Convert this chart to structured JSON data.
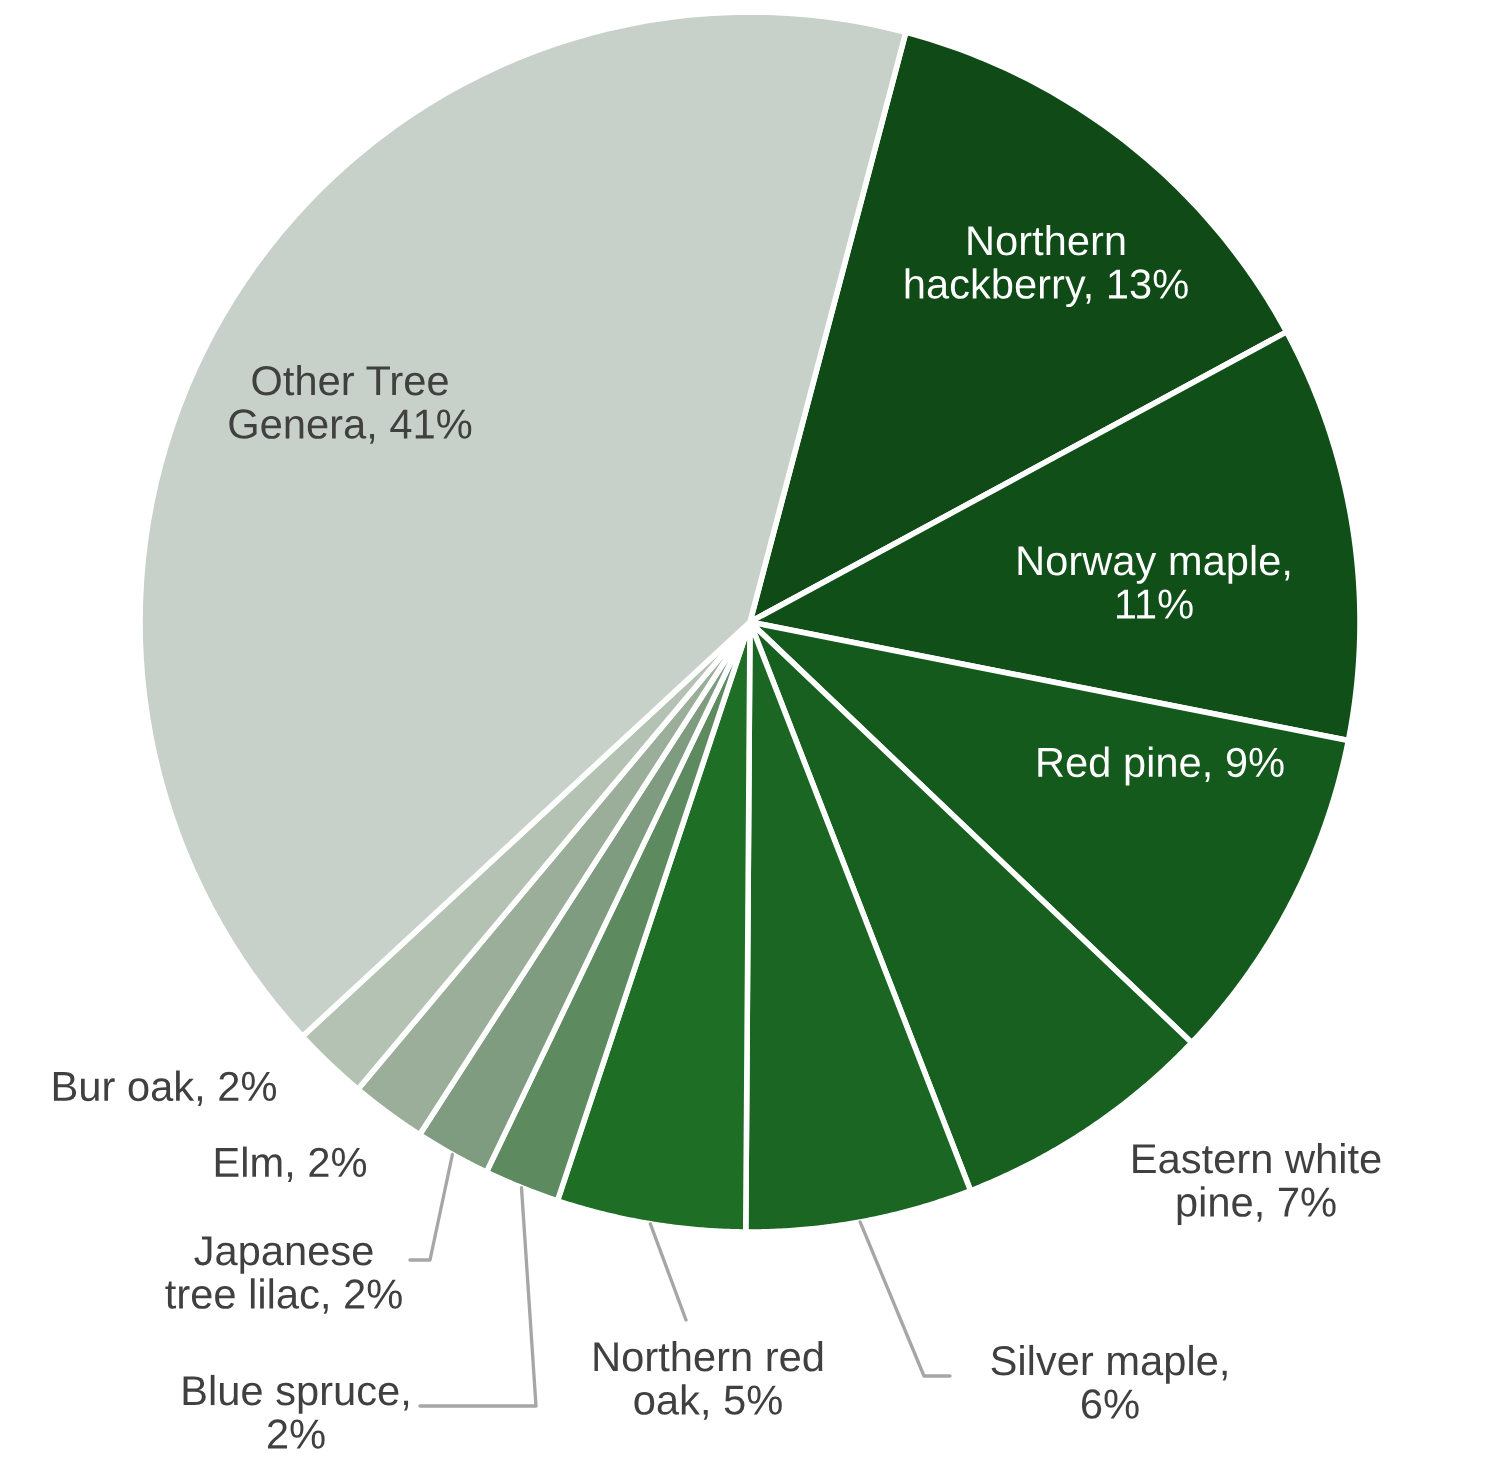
{
  "chart_data": {
    "type": "pie",
    "categories": [
      "Northern hackberry, 13%",
      "Norway maple, 11%",
      "Red pine, 9%",
      "Eastern white pine, 7%",
      "Silver maple, 6%",
      "Northern red oak, 5%",
      "Blue spruce, 2%",
      "Japanese tree lilac, 2%",
      "Elm, 2%",
      "Bur oak, 2%",
      "Other Tree Genera, 41%"
    ],
    "values": [
      13,
      11,
      9,
      7,
      6,
      5,
      2,
      2,
      2,
      2,
      41
    ],
    "colors": [
      "#0f4a17",
      "#114f18",
      "#145a1c",
      "#18601f",
      "#1a6622",
      "#1e6e26",
      "#5e8a60",
      "#7f9c80",
      "#9aae9a",
      "#b4c2b4",
      "#c8d1c9"
    ]
  }
}
